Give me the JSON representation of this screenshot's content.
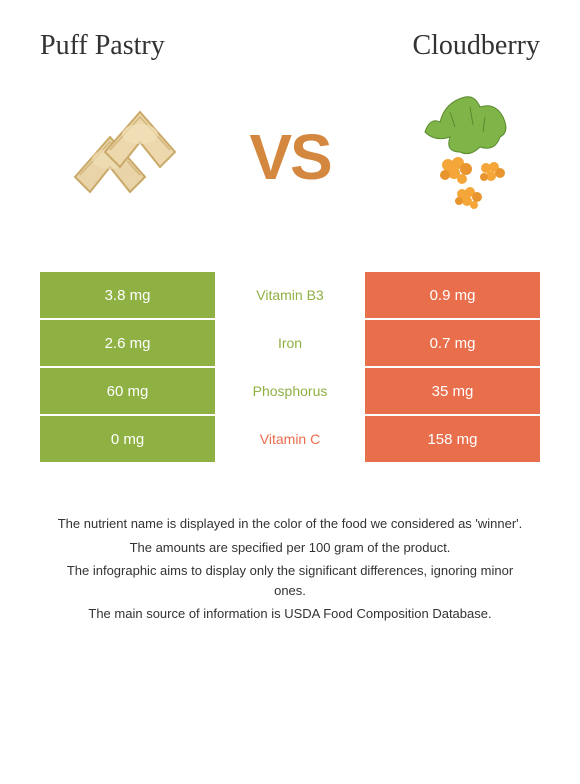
{
  "leftFood": {
    "name": "Puff Pastry",
    "color": "#8fb043"
  },
  "rightFood": {
    "name": "Cloudberry",
    "color": "#e96e4c"
  },
  "vsLabel": "VS",
  "vsColor": "#d4873f",
  "nutrients": [
    {
      "name": "Vitamin B3",
      "leftValue": "3.8 mg",
      "rightValue": "0.9 mg",
      "winner": "left",
      "nameColor": "#8fb043"
    },
    {
      "name": "Iron",
      "leftValue": "2.6 mg",
      "rightValue": "0.7 mg",
      "winner": "left",
      "nameColor": "#8fb043"
    },
    {
      "name": "Phosphorus",
      "leftValue": "60 mg",
      "rightValue": "35 mg",
      "winner": "left",
      "nameColor": "#8fb043"
    },
    {
      "name": "Vitamin C",
      "leftValue": "0 mg",
      "rightValue": "158 mg",
      "winner": "right",
      "nameColor": "#e96e4c"
    }
  ],
  "footer": {
    "line1": "The nutrient name is displayed in the color of the food we considered as 'winner'.",
    "line2": "The amounts are specified per 100 gram of the product.",
    "line3": "The infographic aims to display only the significant differences, ignoring minor ones.",
    "line4": "The main source of information is USDA Food Composition Database."
  }
}
